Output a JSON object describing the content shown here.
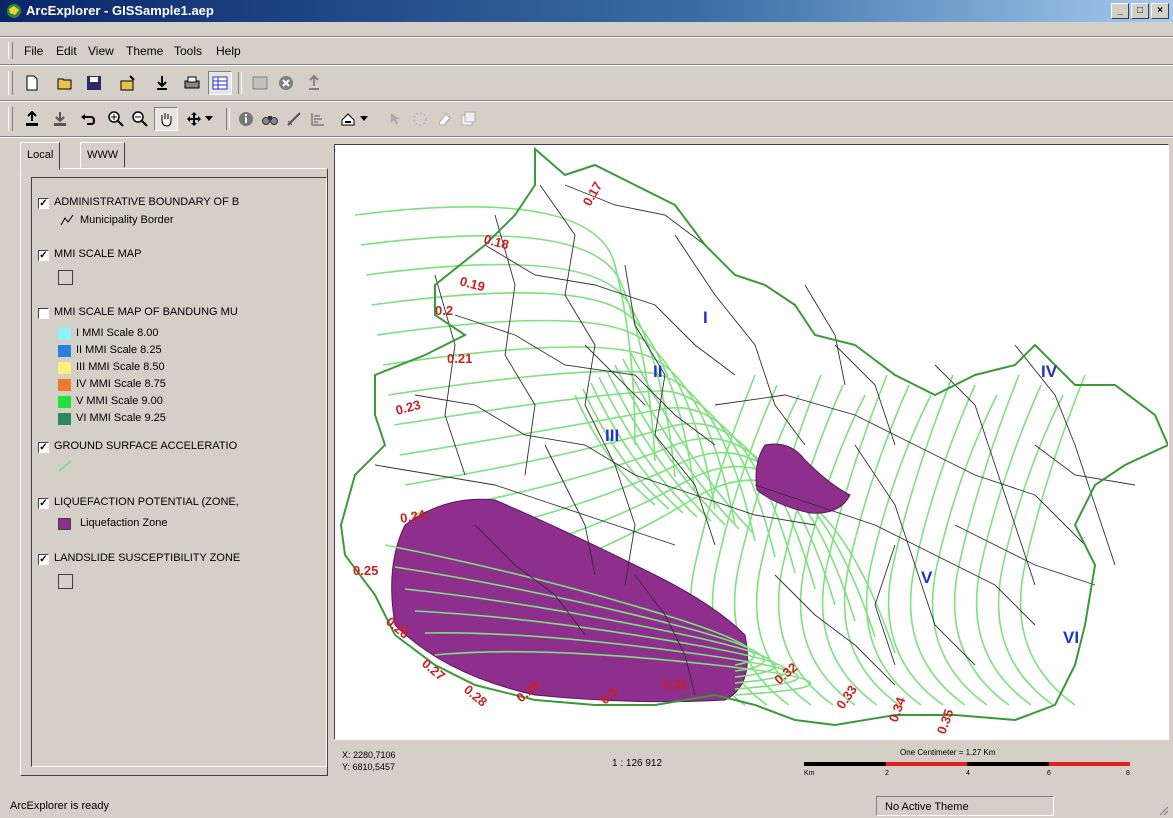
{
  "window": {
    "title": "ArcExplorer - GISSample1.aep",
    "min": "_",
    "max": "□",
    "close": "×"
  },
  "menu": [
    "File",
    "Edit",
    "View",
    "Theme",
    "Tools",
    "Help"
  ],
  "toolbars": {
    "row1": [
      "new-icon",
      "open-icon",
      "save-icon",
      "add-theme-icon",
      "import-icon",
      "print-icon",
      "table-icon",
      "layout-icon",
      "cancel-icon",
      "export-icon"
    ],
    "row2": [
      "theme-up-icon",
      "theme-down-icon",
      "undo-icon",
      "zoom-in-icon",
      "zoom-out-icon",
      "pan-icon",
      "pan-move-icon",
      "identify-icon",
      "find-icon",
      "measure-icon",
      "query-icon",
      "select-icon",
      "hyperlink-icon",
      "buffer-icon",
      "erase-icon",
      "properties-icon"
    ]
  },
  "left_panel": {
    "tabs": [
      "Local",
      "WWW"
    ],
    "legend": [
      {
        "checked": true,
        "label": "ADMINISTRATIVE BOUNDARY OF B",
        "sub_label": "Municipality Border"
      },
      {
        "checked": true,
        "label": "MMI SCALE MAP"
      },
      {
        "checked": false,
        "label": "MMI SCALE MAP OF BANDUNG MU",
        "classes": [
          {
            "label": "I  MMI Scale 8.00",
            "color": "#8ff0ff"
          },
          {
            "label": "II MMI Scale 8.25",
            "color": "#2a7fe0"
          },
          {
            "label": "III MMI Scale 8.50",
            "color": "#fff07a"
          },
          {
            "label": "IV MMI Scale 8.75",
            "color": "#f07a2a"
          },
          {
            "label": "V  MMI Scale 9.00",
            "color": "#22e040"
          },
          {
            "label": "VI MMI Scale 9.25",
            "color": "#2a8a5a"
          }
        ]
      },
      {
        "checked": true,
        "label": "GROUND SURFACE ACCELERATIO"
      },
      {
        "checked": true,
        "label": "LIQUEFACTION POTENTIAL (ZONE,",
        "sub_label": "Liquefaction Zone",
        "color": "#8e2f8e"
      },
      {
        "checked": true,
        "label": "LANDSLIDE SUSCEPTIBILITY ZONE"
      }
    ]
  },
  "map": {
    "contour_labels": [
      "0.17",
      "0.18",
      "0.19",
      "0.2",
      "0.21",
      "0.23",
      "0.24",
      "0.25",
      "0.26",
      "0.27",
      "0.28",
      "0.29",
      "0.3",
      "0.31",
      "0.32",
      "0.33",
      "0.34",
      "0.35"
    ],
    "zone_labels": [
      "I",
      "II",
      "III",
      "IV",
      "V",
      "VI"
    ],
    "colors": {
      "contour": "#7ee07e",
      "liquefaction": "#8e2f8e",
      "border": "#2f2f2f",
      "outline": "#3a9a3a"
    }
  },
  "info": {
    "x": "X: 2280,7106",
    "y": "Y: 6810,5457",
    "scale": "1 : 126 912",
    "scalebar_title": "One Centimeter = 1,27 Km",
    "scalebar_ticks": [
      "Km",
      "2",
      "4",
      "6",
      "8"
    ]
  },
  "status": {
    "left": "ArcExplorer is ready",
    "right": "No Active Theme"
  }
}
